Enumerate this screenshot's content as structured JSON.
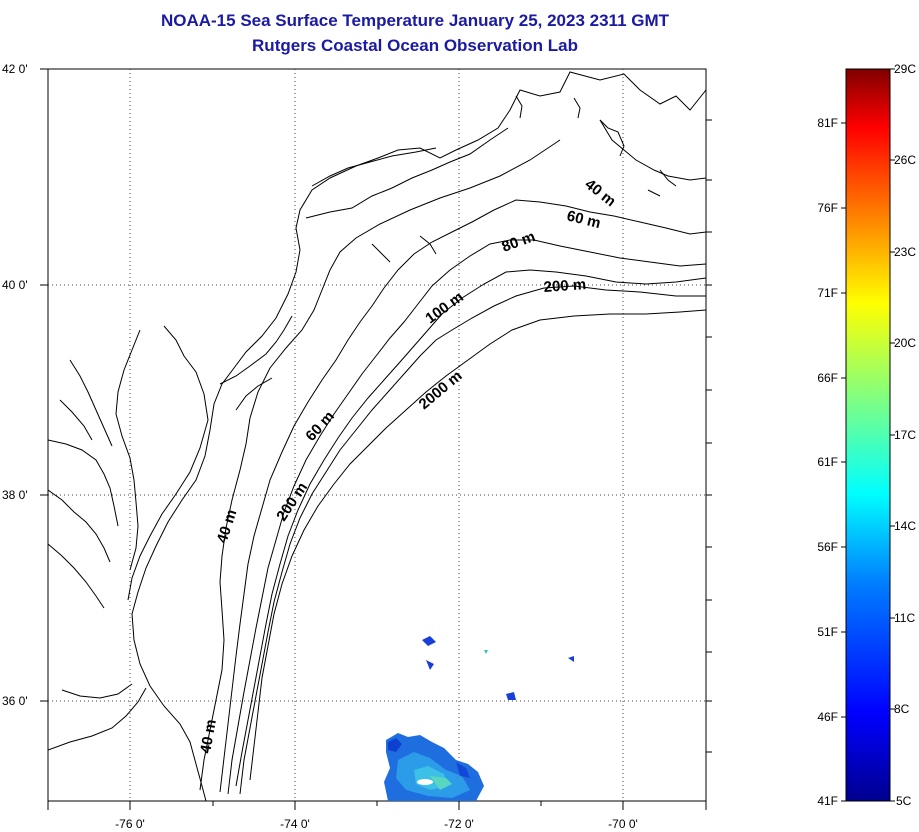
{
  "title": {
    "line1": "NOAA-15 Sea Surface Temperature January 25, 2023 2311 GMT",
    "line2": "Rutgers Coastal Ocean Observation Lab"
  },
  "map": {
    "lat_labels": [
      "42 0'",
      "40 0'",
      "38 0'",
      "36 0'"
    ],
    "lon_labels": [
      "-76 0'",
      "-74 0'",
      "-72 0'",
      "-70 0'"
    ],
    "lat_range": [
      35.0,
      42.0
    ],
    "lon_range": [
      -77.0,
      -69.0
    ],
    "grid": "dotted",
    "contour_labels": [
      "40 m",
      "60 m",
      "80 m",
      "200 m",
      "100 m",
      "2000 m",
      "60 m",
      "200 m",
      "40 m",
      "40 m"
    ]
  },
  "colorbar": {
    "celsius_labels": [
      "29C",
      "26C",
      "23C",
      "20C",
      "17C",
      "14C",
      "11C",
      "8C",
      "5C"
    ],
    "fahrenheit_labels": [
      "81F",
      "76F",
      "71F",
      "66F",
      "61F",
      "56F",
      "51F",
      "46F",
      "41F"
    ],
    "range_c": [
      5,
      29
    ],
    "colors": [
      "#00008f",
      "#0000ff",
      "#0080ff",
      "#00ffff",
      "#80ff80",
      "#ffff00",
      "#ff8000",
      "#ff0000",
      "#800000"
    ]
  }
}
